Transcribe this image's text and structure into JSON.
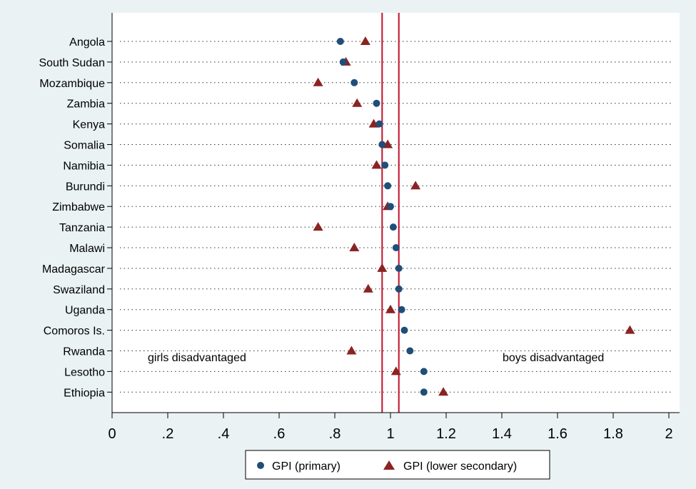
{
  "chart_data": {
    "type": "scatter",
    "orientation": "horizontal-dot",
    "categories": [
      "Angola",
      "South Sudan",
      "Mozambique",
      "Zambia",
      "Kenya",
      "Somalia",
      "Namibia",
      "Burundi",
      "Zimbabwe",
      "Tanzania",
      "Malawi",
      "Madagascar",
      "Swaziland",
      "Uganda",
      "Comoros Is.",
      "Rwanda",
      "Lesotho",
      "Ethiopia"
    ],
    "series": [
      {
        "name": "GPI (primary)",
        "marker": "circle",
        "color": "#1f4e79",
        "values": [
          0.82,
          0.83,
          0.87,
          0.95,
          0.96,
          0.97,
          0.98,
          0.99,
          1.0,
          1.01,
          1.02,
          1.03,
          1.03,
          1.04,
          1.05,
          1.07,
          1.12,
          1.12
        ]
      },
      {
        "name": "GPI (lower secondary)",
        "marker": "triangle",
        "color": "#8b2323",
        "values": [
          0.91,
          0.84,
          0.74,
          0.88,
          0.94,
          0.99,
          0.95,
          1.09,
          0.99,
          0.74,
          0.87,
          0.97,
          0.92,
          1.0,
          1.86,
          0.86,
          1.02,
          1.19
        ]
      }
    ],
    "xlim": [
      0,
      2.05
    ],
    "xticks": [
      0,
      0.2,
      0.4,
      0.6,
      0.8,
      1,
      1.2,
      1.4,
      1.6,
      1.8,
      2
    ],
    "xtick_labels": [
      "0",
      ".2",
      ".4",
      ".6",
      ".8",
      "1",
      "1.2",
      "1.4",
      "1.6",
      "1.8",
      "2"
    ],
    "reference_lines": [
      0.97,
      1.03
    ],
    "reference_line_color": "#c0102a",
    "annotations": {
      "left": "girls disadvantaged",
      "right": "boys disadvantaged"
    },
    "legend_position": "bottom",
    "grid": "dotted horizontal"
  }
}
